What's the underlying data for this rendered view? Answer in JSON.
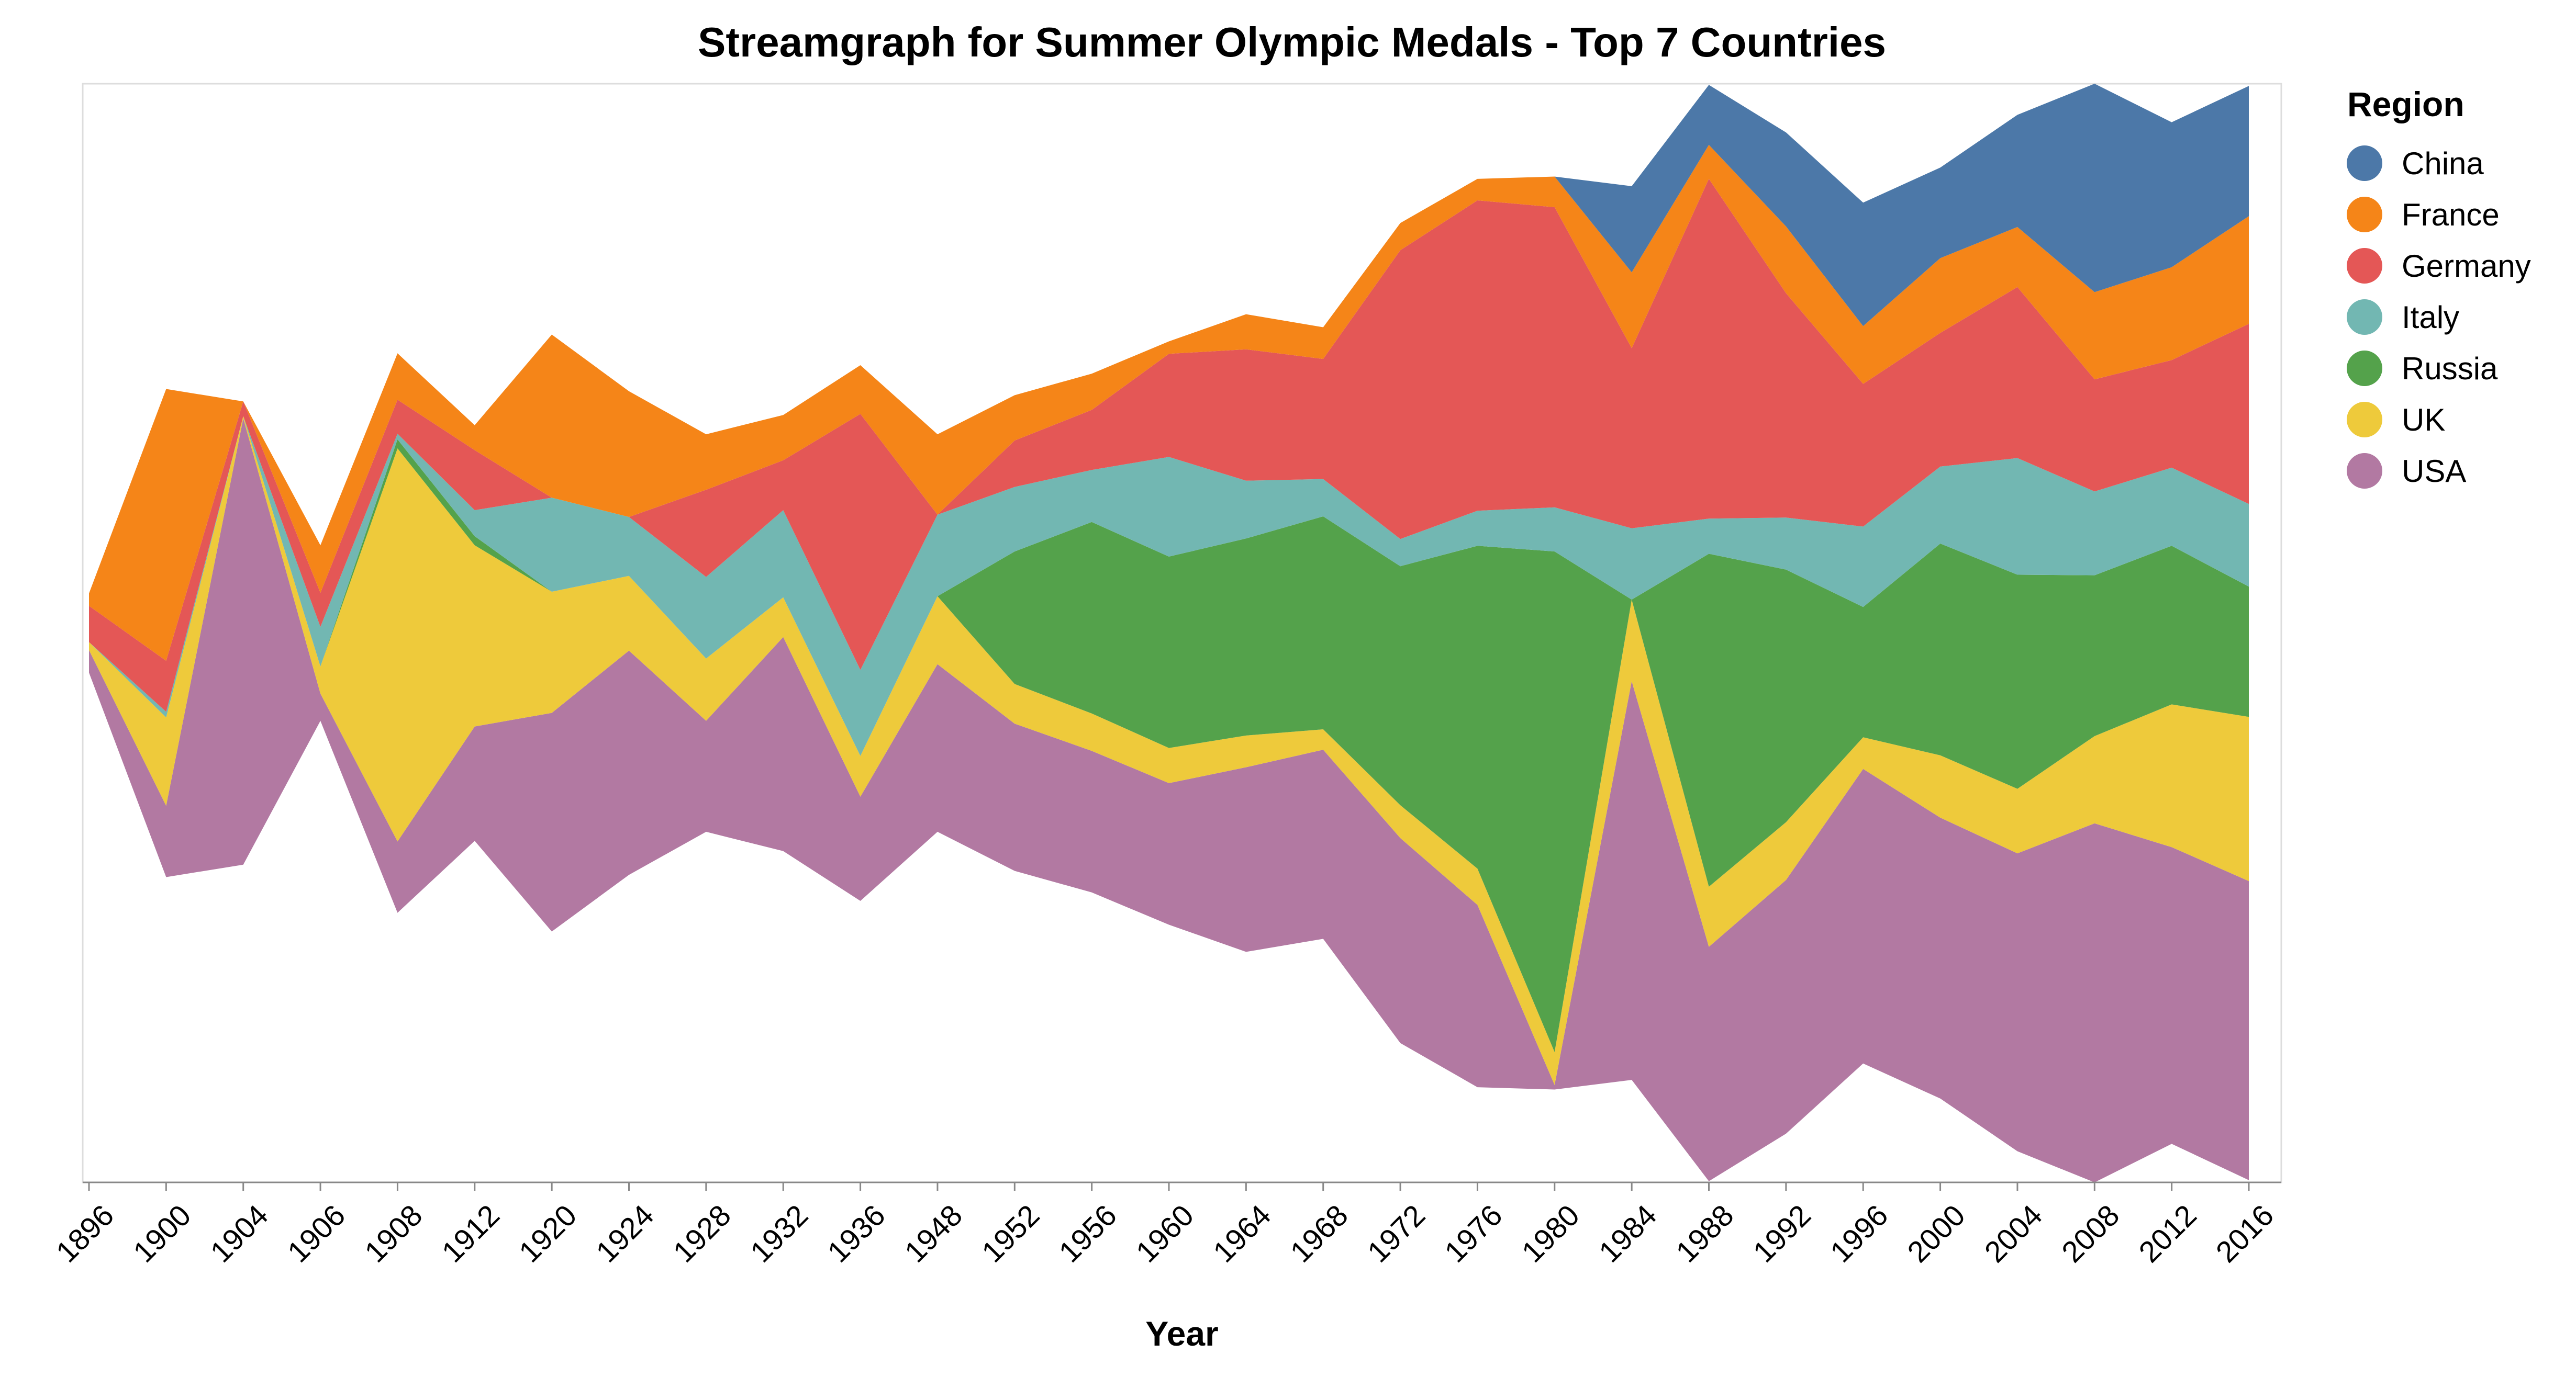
{
  "chart_data": {
    "type": "area",
    "subtype": "streamgraph",
    "title": "Streamgraph for Summer Olympic Medals - Top 7 Countries",
    "xlabel": "Year",
    "ylabel": "",
    "legend": {
      "title": "Region",
      "placement": "right"
    },
    "x": [
      1896,
      1900,
      1904,
      1906,
      1908,
      1912,
      1920,
      1924,
      1928,
      1932,
      1936,
      1948,
      1952,
      1956,
      1960,
      1964,
      1968,
      1972,
      1976,
      1980,
      1984,
      1988,
      1992,
      1996,
      2000,
      2004,
      2008,
      2012,
      2016
    ],
    "series": [
      {
        "name": "USA",
        "color": "#b279a2",
        "values": [
          20,
          63,
          394,
          24,
          63,
          101,
          193,
          198,
          98,
          189,
          92,
          148,
          130,
          125,
          125,
          163,
          167,
          181,
          161,
          4,
          352,
          207,
          224,
          260,
          248,
          263,
          317,
          262,
          264
        ]
      },
      {
        "name": "UK",
        "color": "#eeca3b",
        "values": [
          7,
          78,
          2,
          24,
          347,
          160,
          107,
          66,
          55,
          35,
          36,
          60,
          35,
          33,
          31,
          28,
          18,
          29,
          32,
          29,
          72,
          53,
          51,
          28,
          55,
          57,
          77,
          126,
          145
        ]
      },
      {
        "name": "Russia",
        "color": "#54a24b",
        "values": [
          0,
          0,
          0,
          0,
          8,
          8,
          0,
          0,
          0,
          0,
          0,
          0,
          117,
          169,
          169,
          174,
          188,
          211,
          285,
          442,
          0,
          294,
          223,
          115,
          187,
          189,
          142,
          140,
          115
        ]
      },
      {
        "name": "Italy",
        "color": "#72b7b2",
        "values": [
          0,
          5,
          0,
          35,
          5,
          23,
          83,
          52,
          72,
          77,
          76,
          72,
          57,
          46,
          88,
          51,
          33,
          24,
          31,
          39,
          63,
          31,
          46,
          71,
          68,
          103,
          74,
          69,
          73
        ]
      },
      {
        "name": "Germany",
        "color": "#e45756",
        "values": [
          32,
          45,
          13,
          30,
          30,
          53,
          0,
          0,
          77,
          44,
          226,
          0,
          41,
          53,
          91,
          116,
          106,
          255,
          274,
          265,
          159,
          300,
          198,
          126,
          118,
          151,
          99,
          95,
          159
        ]
      },
      {
        "name": "France",
        "color": "#f58518",
        "values": [
          11,
          240,
          0,
          42,
          41,
          22,
          144,
          111,
          49,
          40,
          43,
          71,
          40,
          32,
          11,
          31,
          28,
          24,
          19,
          27,
          67,
          30,
          59,
          51,
          66,
          53,
          77,
          82,
          95
        ]
      },
      {
        "name": "China",
        "color": "#4c78a8",
        "values": [
          0,
          0,
          0,
          0,
          0,
          0,
          0,
          0,
          0,
          0,
          0,
          0,
          0,
          0,
          0,
          0,
          0,
          0,
          0,
          0,
          76,
          53,
          83,
          109,
          80,
          99,
          184,
          128,
          115
        ]
      }
    ],
    "legend_order": [
      "China",
      "France",
      "Germany",
      "Italy",
      "Russia",
      "UK",
      "USA"
    ],
    "grid": false
  }
}
